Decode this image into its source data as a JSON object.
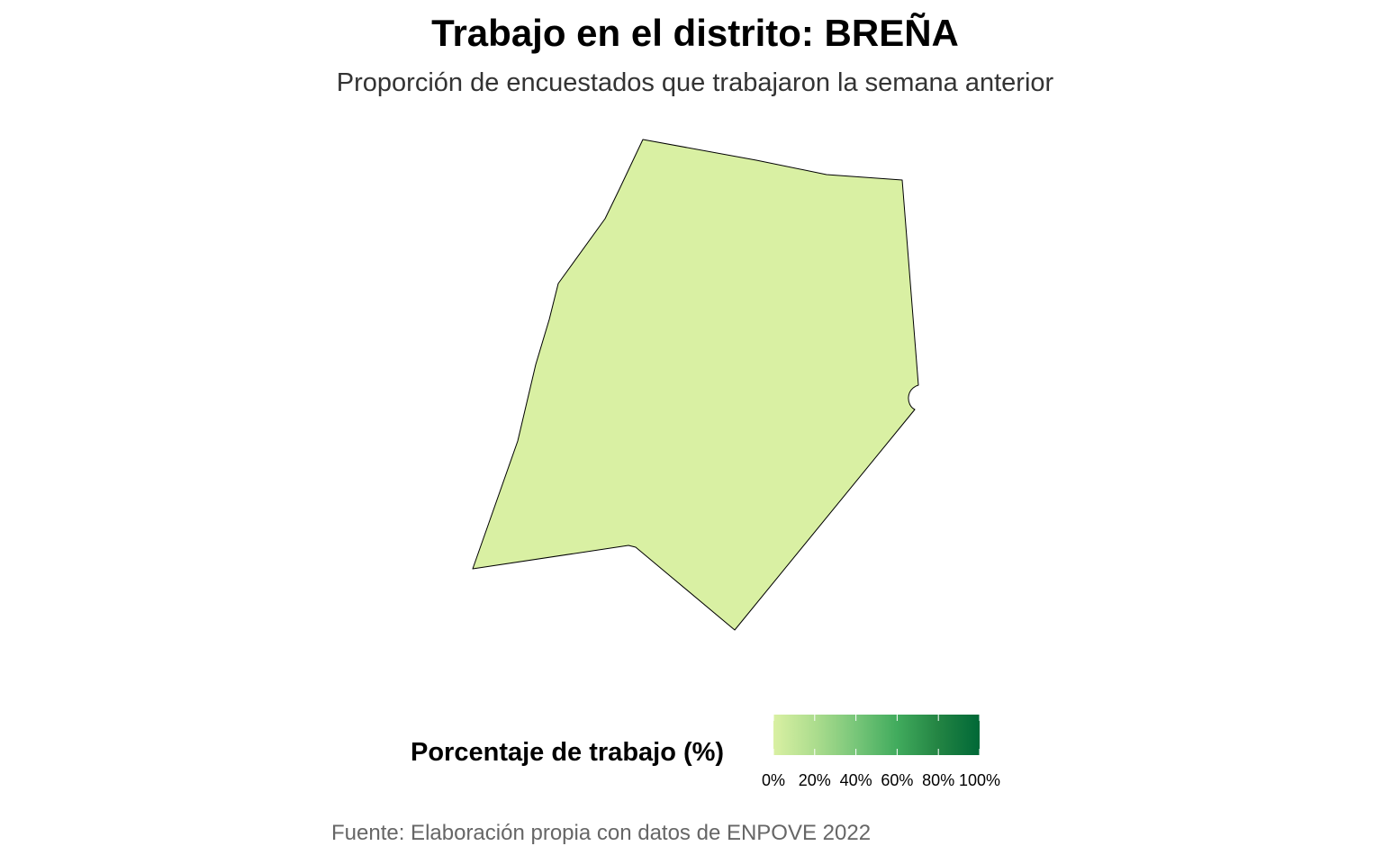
{
  "title": "Trabajo en el distrito: BREÑA",
  "subtitle": "Proporción de encuestados que trabajaron la semana anterior",
  "caption": "Fuente: Elaboración propia con datos de ENPOVE 2022",
  "map": {
    "region_name": "BREÑA",
    "fill_color": "#d9f0a3",
    "border_color": "#000000"
  },
  "legend": {
    "title": "Porcentaje de trabajo (%)",
    "palette": [
      "#d9f0a3",
      "#addd8e",
      "#78c679",
      "#41ab5d",
      "#238443",
      "#006837"
    ],
    "ticks": [
      "0%",
      "20%",
      "40%",
      "60%",
      "80%",
      "100%"
    ]
  }
}
